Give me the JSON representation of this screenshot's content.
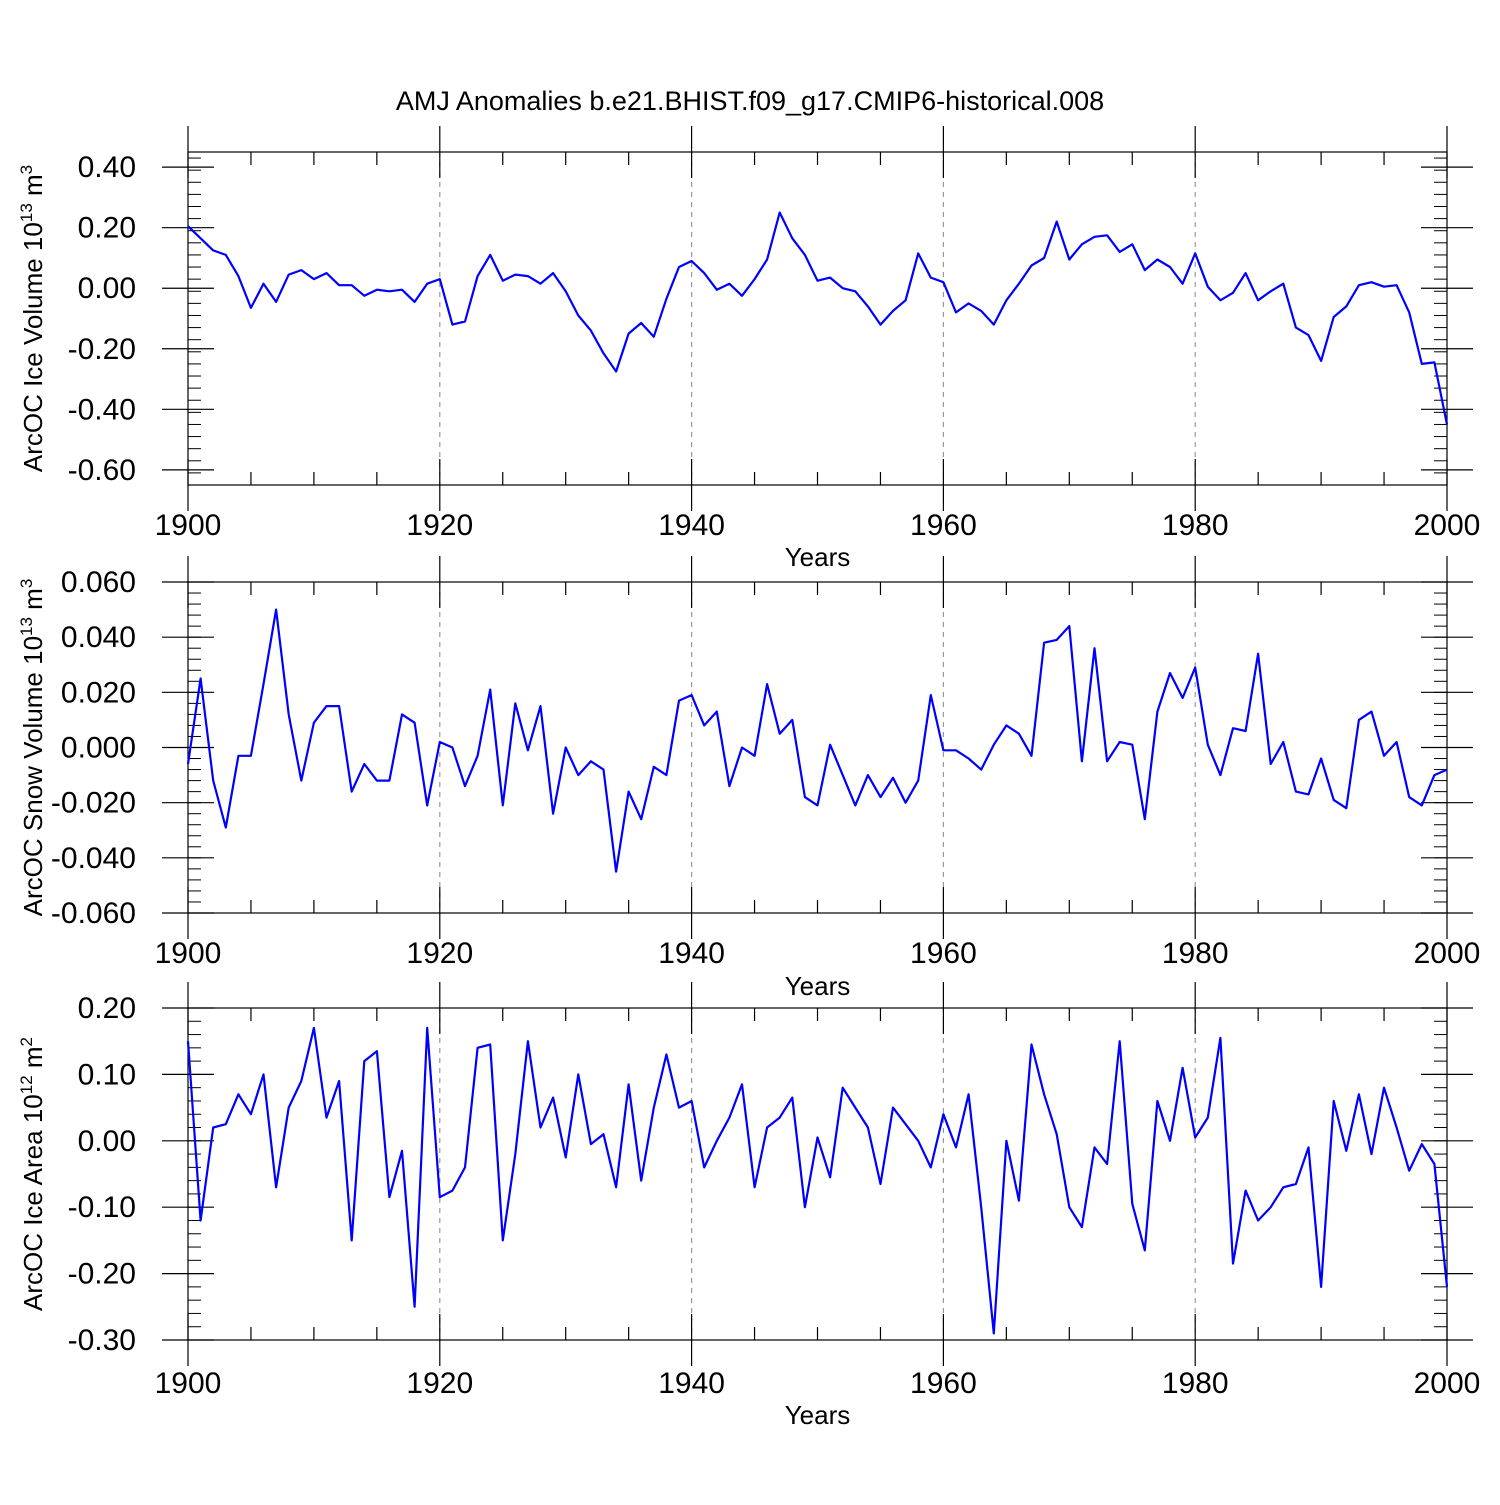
{
  "title": "AMJ Anomalies b.e21.BHIST.f09_g17.CMIP6-historical.008",
  "colors": {
    "line": "#0000ff",
    "axis": "#000000",
    "grid": "#999999"
  },
  "chart_data": [
    {
      "type": "line",
      "ylabel": "ArcOC Ice Volume 10",
      "ylabel_exp": "13",
      "ylabel_unit": " m",
      "ylabel_unit_exp": "3",
      "xlabel": "Years",
      "xlim": [
        1900,
        2000
      ],
      "ylim": [
        -0.65,
        0.45
      ],
      "xticks": [
        1900,
        1920,
        1940,
        1960,
        1980,
        2000
      ],
      "yticks": [
        -0.6,
        -0.4,
        -0.2,
        0.0,
        0.2,
        0.4
      ],
      "ytick_labels": [
        "-0.60",
        "-0.40",
        "-0.20",
        "0.00",
        "0.20",
        "0.40"
      ],
      "yminor_step": 0.04,
      "x_start": 1900,
      "values": [
        0.205,
        0.165,
        0.125,
        0.11,
        0.04,
        -0.065,
        0.015,
        -0.045,
        0.045,
        0.06,
        0.03,
        0.05,
        0.01,
        0.01,
        -0.025,
        -0.005,
        -0.01,
        -0.005,
        -0.045,
        0.015,
        0.03,
        -0.12,
        -0.11,
        0.04,
        0.11,
        0.025,
        0.045,
        0.04,
        0.015,
        0.05,
        -0.01,
        -0.09,
        -0.14,
        -0.215,
        -0.275,
        -0.15,
        -0.115,
        -0.16,
        -0.035,
        0.07,
        0.09,
        0.05,
        -0.005,
        0.015,
        -0.025,
        0.03,
        0.095,
        0.25,
        0.165,
        0.11,
        0.025,
        0.035,
        0.0,
        -0.01,
        -0.06,
        -0.12,
        -0.075,
        -0.04,
        0.115,
        0.035,
        0.02,
        -0.08,
        -0.05,
        -0.075,
        -0.12,
        -0.04,
        0.015,
        0.075,
        0.1,
        0.22,
        0.095,
        0.145,
        0.17,
        0.175,
        0.12,
        0.145,
        0.06,
        0.095,
        0.07,
        0.015,
        0.115,
        0.005,
        -0.04,
        -0.015,
        0.05,
        -0.04,
        -0.01,
        0.015,
        -0.13,
        -0.155,
        -0.24,
        -0.095,
        -0.06,
        0.01,
        0.02,
        0.005,
        0.01,
        -0.08,
        -0.25,
        -0.245,
        -0.45
      ]
    },
    {
      "type": "line",
      "ylabel": "ArcOC Snow Volume 10",
      "ylabel_exp": "13",
      "ylabel_unit": " m",
      "ylabel_unit_exp": "3",
      "xlabel": "Years",
      "xlim": [
        1900,
        2000
      ],
      "ylim": [
        -0.06,
        0.06
      ],
      "xticks": [
        1900,
        1920,
        1940,
        1960,
        1980,
        2000
      ],
      "yticks": [
        -0.06,
        -0.04,
        -0.02,
        0.0,
        0.02,
        0.04,
        0.06
      ],
      "ytick_labels": [
        "-0.060",
        "-0.040",
        "-0.020",
        "0.000",
        "0.020",
        "0.040",
        "0.060"
      ],
      "yminor_step": 0.004,
      "x_start": 1900,
      "values": [
        -0.006,
        0.025,
        -0.012,
        -0.029,
        -0.003,
        -0.003,
        0.023,
        0.05,
        0.012,
        -0.012,
        0.009,
        0.015,
        0.015,
        -0.016,
        -0.006,
        -0.012,
        -0.012,
        0.012,
        0.009,
        -0.021,
        0.002,
        0.0,
        -0.014,
        -0.003,
        0.021,
        -0.021,
        0.016,
        -0.001,
        0.015,
        -0.024,
        0.0,
        -0.01,
        -0.005,
        -0.008,
        -0.045,
        -0.016,
        -0.026,
        -0.007,
        -0.01,
        0.017,
        0.019,
        0.008,
        0.013,
        -0.014,
        0.0,
        -0.003,
        0.023,
        0.005,
        0.01,
        -0.018,
        -0.021,
        0.001,
        -0.01,
        -0.021,
        -0.01,
        -0.018,
        -0.011,
        -0.02,
        -0.012,
        0.019,
        -0.001,
        -0.001,
        -0.004,
        -0.008,
        0.001,
        0.008,
        0.005,
        -0.003,
        0.038,
        0.039,
        0.044,
        -0.005,
        0.036,
        -0.005,
        0.002,
        0.001,
        -0.026,
        0.013,
        0.027,
        0.018,
        0.029,
        0.001,
        -0.01,
        0.007,
        0.006,
        0.034,
        -0.006,
        0.002,
        -0.016,
        -0.017,
        -0.004,
        -0.019,
        -0.022,
        0.01,
        0.013,
        -0.003,
        0.002,
        -0.018,
        -0.021,
        -0.01,
        -0.008
      ]
    },
    {
      "type": "line",
      "ylabel": "ArcOC Ice Area 10",
      "ylabel_exp": "12",
      "ylabel_unit": " m",
      "ylabel_unit_exp": "2",
      "xlabel": "Years",
      "xlim": [
        1900,
        2000
      ],
      "ylim": [
        -0.3,
        0.2
      ],
      "xticks": [
        1900,
        1920,
        1940,
        1960,
        1980,
        2000
      ],
      "yticks": [
        -0.3,
        -0.2,
        -0.1,
        0.0,
        0.1,
        0.2
      ],
      "ytick_labels": [
        "-0.30",
        "-0.20",
        "-0.10",
        "0.00",
        "0.10",
        "0.20"
      ],
      "yminor_step": 0.02,
      "x_start": 1900,
      "values": [
        0.15,
        -0.12,
        0.02,
        0.025,
        0.07,
        0.04,
        0.1,
        -0.07,
        0.05,
        0.09,
        0.17,
        0.035,
        0.09,
        -0.15,
        0.12,
        0.135,
        -0.085,
        -0.015,
        -0.25,
        0.17,
        -0.085,
        -0.075,
        -0.04,
        0.14,
        0.145,
        -0.15,
        -0.02,
        0.15,
        0.02,
        0.065,
        -0.025,
        0.1,
        -0.005,
        0.01,
        -0.07,
        0.085,
        -0.06,
        0.05,
        0.13,
        0.05,
        0.06,
        -0.04,
        0.0,
        0.035,
        0.085,
        -0.07,
        0.02,
        0.035,
        0.065,
        -0.1,
        0.005,
        -0.055,
        0.08,
        0.05,
        0.02,
        -0.065,
        0.05,
        0.025,
        0.0,
        -0.04,
        0.04,
        -0.01,
        0.07,
        -0.1,
        -0.29,
        0.0,
        -0.09,
        0.145,
        0.07,
        0.01,
        -0.1,
        -0.13,
        -0.01,
        -0.035,
        0.15,
        -0.095,
        -0.165,
        0.06,
        0.0,
        0.11,
        0.005,
        0.035,
        0.155,
        -0.185,
        -0.075,
        -0.12,
        -0.1,
        -0.07,
        -0.065,
        -0.01,
        -0.22,
        0.06,
        -0.015,
        0.07,
        -0.02,
        0.08,
        0.02,
        -0.045,
        -0.005,
        -0.035,
        -0.22
      ]
    }
  ]
}
